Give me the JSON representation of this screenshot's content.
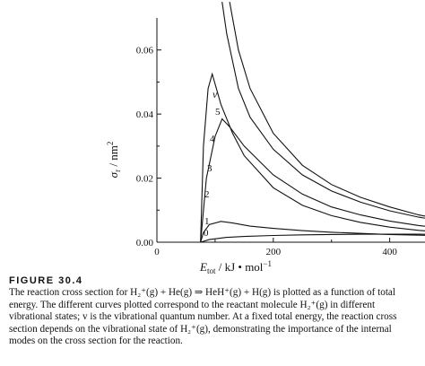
{
  "chart_data": {
    "type": "line",
    "xlabel_main": "E",
    "xlabel_sub": "tot",
    "xlabel_units": " / kJ • mol",
    "xlabel_exp": "−1",
    "ylabel_main": "σ",
    "ylabel_sub": "r",
    "ylabel_units": " / nm",
    "ylabel_exp": "2",
    "xlim": [
      0,
      550
    ],
    "ylim": [
      0,
      0.07
    ],
    "x_ticks": [
      0,
      200,
      400
    ],
    "y_ticks": [
      0.0,
      0.02,
      0.04,
      0.06
    ],
    "x_tick_labels": [
      "0",
      "200",
      "400"
    ],
    "y_tick_labels": [
      "0.00",
      "0.02",
      "0.04",
      "0.06"
    ],
    "legend_title": "v",
    "series": [
      {
        "name": "5",
        "x": [
          125,
          140,
          160,
          200,
          250,
          300,
          350,
          400,
          450,
          500,
          550
        ],
        "y": [
          0.075,
          0.06,
          0.048,
          0.034,
          0.024,
          0.018,
          0.014,
          0.011,
          0.0085,
          0.0068,
          0.0055
        ]
      },
      {
        "name": "4",
        "x": [
          112,
          120,
          140,
          160,
          200,
          250,
          300,
          350,
          400,
          450,
          500,
          550
        ],
        "y": [
          0.075,
          0.065,
          0.048,
          0.039,
          0.029,
          0.021,
          0.016,
          0.0125,
          0.0098,
          0.0078,
          0.0063,
          0.0052
        ]
      },
      {
        "name": "3",
        "x": [
          75,
          85,
          100,
          112,
          125,
          150,
          200,
          250,
          300,
          350,
          400,
          450,
          500,
          550
        ],
        "y": [
          0.0,
          0.02,
          0.033,
          0.0385,
          0.036,
          0.03,
          0.021,
          0.015,
          0.011,
          0.0085,
          0.0066,
          0.0052,
          0.0042,
          0.0035
        ]
      },
      {
        "name": "2",
        "x": [
          75,
          80,
          88,
          95,
          110,
          130,
          150,
          200,
          250,
          300,
          350,
          400,
          450,
          500,
          550
        ],
        "y": [
          0.0,
          0.03,
          0.048,
          0.0525,
          0.043,
          0.034,
          0.027,
          0.017,
          0.0115,
          0.0083,
          0.0062,
          0.0047,
          0.0037,
          0.003,
          0.0025
        ]
      },
      {
        "name": "1",
        "x": [
          75,
          80,
          90,
          110,
          130,
          160,
          200,
          250,
          300,
          400,
          500,
          550
        ],
        "y": [
          0.0,
          0.003,
          0.0055,
          0.0065,
          0.006,
          0.005,
          0.0043,
          0.0036,
          0.0031,
          0.0024,
          0.002,
          0.0018
        ]
      },
      {
        "name": "0",
        "x": [
          75,
          90,
          120,
          150,
          200,
          250,
          300,
          350,
          400,
          450,
          500,
          550
        ],
        "y": [
          0.0,
          0.0008,
          0.0015,
          0.0018,
          0.0021,
          0.0023,
          0.0024,
          0.0025,
          0.0025,
          0.0025,
          0.0024,
          0.0024
        ]
      }
    ]
  },
  "caption": {
    "figure_label": "FIGURE 30.4",
    "text": "The reaction cross section for H₂⁺(g) + He(g) ⇒ HeH⁺(g) + H(g) is plotted as a function of total energy. The different curves plotted correspond to the reactant molecule H₂⁺(g) in different vibrational states; v is the vibrational quantum number. At a fixed total energy, the reaction cross section depends on the vibrational state of H₂⁺(g), demonstrating the importance of the internal modes on the cross section for the reaction."
  }
}
